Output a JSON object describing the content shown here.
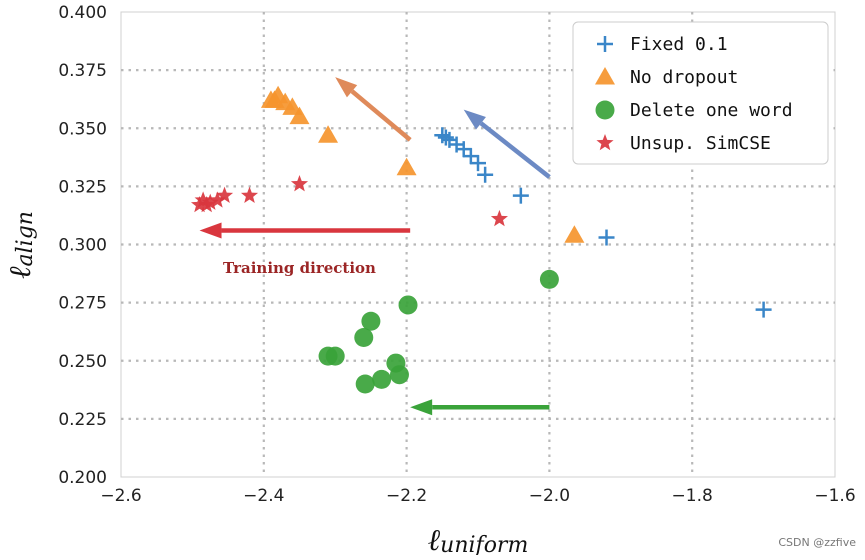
{
  "chart_data": {
    "type": "scatter",
    "title": "",
    "xlabel": {
      "symbol": "ℓ",
      "subscript": "uniform"
    },
    "ylabel": {
      "symbol": "ℓ",
      "subscript": "align"
    },
    "xlim": [
      -2.6,
      -1.6
    ],
    "ylim": [
      0.2,
      0.4
    ],
    "xticks": [
      -2.6,
      -2.4,
      -2.2,
      -2.0,
      -1.8,
      -1.6
    ],
    "xtick_labels": [
      "−2.6",
      "−2.4",
      "−2.2",
      "−2.0",
      "−1.8",
      "−1.6"
    ],
    "yticks": [
      0.2,
      0.225,
      0.25,
      0.275,
      0.3,
      0.325,
      0.35,
      0.375,
      0.4
    ],
    "ytick_labels": [
      "0.200",
      "0.225",
      "0.250",
      "0.275",
      "0.300",
      "0.325",
      "0.350",
      "0.375",
      "0.400"
    ],
    "grid": true,
    "legend_position": "top-right",
    "series": [
      {
        "name": "Fixed 0.1",
        "marker": "plus",
        "color": "#3a86c8",
        "points": [
          [
            -1.7,
            0.272
          ],
          [
            -1.92,
            0.303
          ],
          [
            -2.04,
            0.321
          ],
          [
            -2.09,
            0.33
          ],
          [
            -2.1,
            0.335
          ],
          [
            -2.11,
            0.338
          ],
          [
            -2.12,
            0.341
          ],
          [
            -2.13,
            0.343
          ],
          [
            -2.14,
            0.345
          ],
          [
            -2.145,
            0.346
          ],
          [
            -2.15,
            0.347
          ]
        ]
      },
      {
        "name": "No dropout",
        "marker": "triangle",
        "color": "#f5952e",
        "points": [
          [
            -1.965,
            0.304
          ],
          [
            -2.2,
            0.333
          ],
          [
            -2.31,
            0.347
          ],
          [
            -2.35,
            0.355
          ],
          [
            -2.36,
            0.359
          ],
          [
            -2.37,
            0.361
          ],
          [
            -2.38,
            0.364
          ],
          [
            -2.385,
            0.362
          ],
          [
            -2.39,
            0.362
          ]
        ]
      },
      {
        "name": "Delete one word",
        "marker": "circle",
        "color": "#3aa33a",
        "points": [
          [
            -2.0,
            0.285
          ],
          [
            -2.198,
            0.274
          ],
          [
            -2.25,
            0.267
          ],
          [
            -2.26,
            0.26
          ],
          [
            -2.31,
            0.252
          ],
          [
            -2.3,
            0.252
          ],
          [
            -2.215,
            0.249
          ],
          [
            -2.21,
            0.244
          ],
          [
            -2.235,
            0.242
          ],
          [
            -2.258,
            0.24
          ]
        ]
      },
      {
        "name": "Unsup. SimCSE",
        "marker": "star",
        "color": "#d9363e",
        "points": [
          [
            -2.07,
            0.311
          ],
          [
            -2.35,
            0.326
          ],
          [
            -2.42,
            0.321
          ],
          [
            -2.455,
            0.321
          ],
          [
            -2.465,
            0.319
          ],
          [
            -2.475,
            0.318
          ],
          [
            -2.48,
            0.317
          ],
          [
            -2.485,
            0.319
          ],
          [
            -2.49,
            0.317
          ]
        ]
      }
    ],
    "annotations": [
      {
        "type": "arrow",
        "color": "#df8a5a",
        "from": [
          -2.195,
          0.345
        ],
        "to": [
          -2.3,
          0.372
        ]
      },
      {
        "type": "arrow",
        "color": "#6c8ac4",
        "from": [
          -2.0,
          0.329
        ],
        "to": [
          -2.12,
          0.358
        ]
      },
      {
        "type": "arrow",
        "color": "#d9363e",
        "from": [
          -2.195,
          0.306
        ],
        "to": [
          -2.49,
          0.306
        ]
      },
      {
        "type": "arrow",
        "color": "#3aa33a",
        "from": [
          -2.0,
          0.23
        ],
        "to": [
          -2.195,
          0.23
        ]
      },
      {
        "type": "text",
        "text": "Training direction",
        "color": "#9b2525",
        "at": [
          -2.35,
          0.29
        ]
      }
    ]
  },
  "watermark": "CSDN @zzfive"
}
